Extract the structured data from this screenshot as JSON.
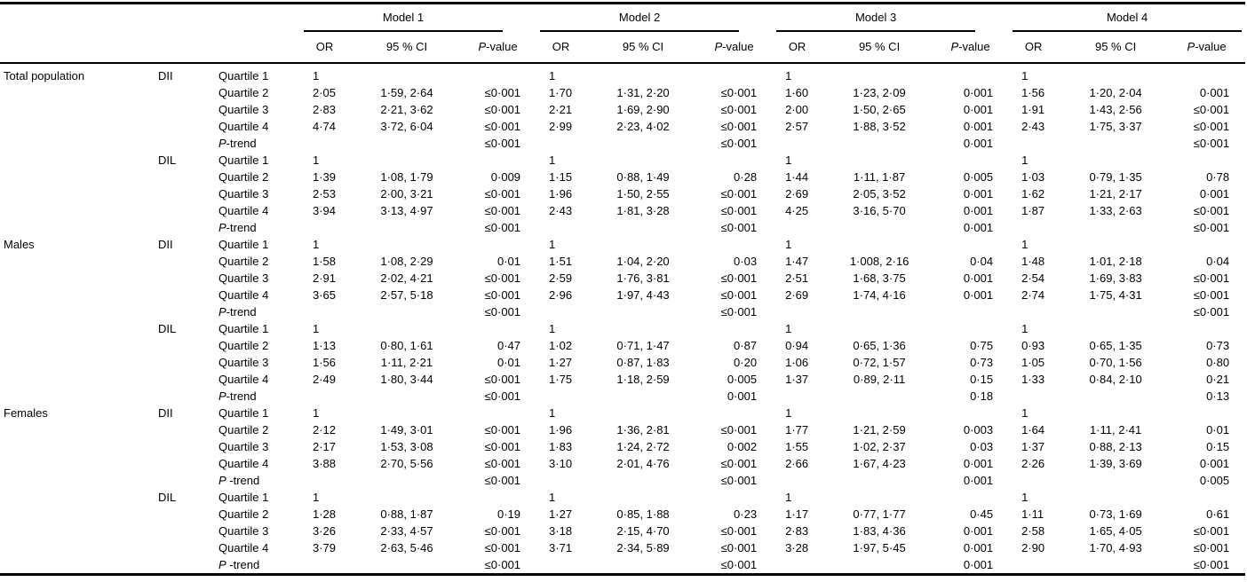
{
  "models": [
    "Model 1",
    "Model 2",
    "Model 3",
    "Model 4"
  ],
  "subheader": {
    "or": "OR",
    "ci": "95 % CI",
    "p_italic": "P",
    "p_rest": "-value"
  },
  "groups": [
    {
      "label": "Total population",
      "exposures": [
        {
          "label": "DII",
          "rows": [
            {
              "prefix": "",
              "label": "Quartile 1",
              "cells": [
                [
                  "1",
                  "",
                  ""
                ],
                [
                  "1",
                  "",
                  ""
                ],
                [
                  "1",
                  "",
                  ""
                ],
                [
                  "1",
                  "",
                  ""
                ]
              ]
            },
            {
              "prefix": "",
              "label": "Quartile 2",
              "cells": [
                [
                  "2·05",
                  "1·59, 2·64",
                  "≤0·001"
                ],
                [
                  "1·70",
                  "1·31, 2·20",
                  "≤0·001"
                ],
                [
                  "1·60",
                  "1·23, 2·09",
                  "0·001"
                ],
                [
                  "1·56",
                  "1·20, 2·04",
                  "0·001"
                ]
              ]
            },
            {
              "prefix": "",
              "label": "Quartile 3",
              "cells": [
                [
                  "2·83",
                  "2·21, 3·62",
                  "≤0·001"
                ],
                [
                  "2·21",
                  "1·69, 2·90",
                  "≤0·001"
                ],
                [
                  "2·00",
                  "1·50, 2·65",
                  "0·001"
                ],
                [
                  "1·91",
                  "1·43, 2·56",
                  "≤0·001"
                ]
              ]
            },
            {
              "prefix": "",
              "label": "Quartile 4",
              "cells": [
                [
                  "4·74",
                  "3·72, 6·04",
                  "≤0·001"
                ],
                [
                  "2·99",
                  "2·23, 4·02",
                  "≤0·001"
                ],
                [
                  "2·57",
                  "1·88, 3·52",
                  "0·001"
                ],
                [
                  "2·43",
                  "1·75, 3·37",
                  "≤0·001"
                ]
              ]
            },
            {
              "prefix": "P",
              "label": "-trend",
              "cells": [
                [
                  "",
                  "",
                  "≤0·001"
                ],
                [
                  "",
                  "",
                  "≤0·001"
                ],
                [
                  "",
                  "",
                  "0·001"
                ],
                [
                  "",
                  "",
                  "≤0·001"
                ]
              ]
            }
          ]
        },
        {
          "label": "DIL",
          "rows": [
            {
              "prefix": "",
              "label": "Quartile 1",
              "cells": [
                [
                  "1",
                  "",
                  ""
                ],
                [
                  "1",
                  "",
                  ""
                ],
                [
                  "1",
                  "",
                  ""
                ],
                [
                  "1",
                  "",
                  ""
                ]
              ]
            },
            {
              "prefix": "",
              "label": "Quartile 2",
              "cells": [
                [
                  "1·39",
                  "1·08, 1·79",
                  "0·009"
                ],
                [
                  "1·15",
                  "0·88, 1·49",
                  "0·28"
                ],
                [
                  "1·44",
                  "1·11, 1·87",
                  "0·005"
                ],
                [
                  "1·03",
                  "0·79, 1·35",
                  "0·78"
                ]
              ]
            },
            {
              "prefix": "",
              "label": "Quartile 3",
              "cells": [
                [
                  "2·53",
                  "2·00, 3·21",
                  "≤0·001"
                ],
                [
                  "1·96",
                  "1·50, 2·55",
                  "≤0·001"
                ],
                [
                  "2·69",
                  "2·05, 3·52",
                  "0·001"
                ],
                [
                  "1·62",
                  "1·21, 2·17",
                  "0·001"
                ]
              ]
            },
            {
              "prefix": "",
              "label": "Quartile 4",
              "cells": [
                [
                  "3·94",
                  "3·13, 4·97",
                  "≤0·001"
                ],
                [
                  "2·43",
                  "1·81, 3·28",
                  "≤0·001"
                ],
                [
                  "4·25",
                  "3·16, 5·70",
                  "0·001"
                ],
                [
                  "1·87",
                  "1·33, 2·63",
                  "≤0·001"
                ]
              ]
            },
            {
              "prefix": "P",
              "label": "-trend",
              "cells": [
                [
                  "",
                  "",
                  "≤0·001"
                ],
                [
                  "",
                  "",
                  "≤0·001"
                ],
                [
                  "",
                  "",
                  "0·001"
                ],
                [
                  "",
                  "",
                  "≤0·001"
                ]
              ]
            }
          ]
        }
      ]
    },
    {
      "label": "Males",
      "exposures": [
        {
          "label": "DII",
          "rows": [
            {
              "prefix": "",
              "label": "Quartile 1",
              "cells": [
                [
                  "1",
                  "",
                  ""
                ],
                [
                  "1",
                  "",
                  ""
                ],
                [
                  "1",
                  "",
                  ""
                ],
                [
                  "1",
                  "",
                  ""
                ]
              ]
            },
            {
              "prefix": "",
              "label": "Quartile 2",
              "cells": [
                [
                  "1·58",
                  "1·08, 2·29",
                  "0·01"
                ],
                [
                  "1·51",
                  "1·04, 2·20",
                  "0·03"
                ],
                [
                  "1·47",
                  "1·008, 2·16",
                  "0·04"
                ],
                [
                  "1·48",
                  "1·01, 2·18",
                  "0·04"
                ]
              ]
            },
            {
              "prefix": "",
              "label": "Quartile 3",
              "cells": [
                [
                  "2·91",
                  "2·02, 4·21",
                  "≤0·001"
                ],
                [
                  "2·59",
                  "1·76, 3·81",
                  "≤0·001"
                ],
                [
                  "2·51",
                  "1·68, 3·75",
                  "0·001"
                ],
                [
                  "2·54",
                  "1·69, 3·83",
                  "≤0·001"
                ]
              ]
            },
            {
              "prefix": "",
              "label": "Quartile 4",
              "cells": [
                [
                  "3·65",
                  "2·57, 5·18",
                  "≤0·001"
                ],
                [
                  "2·96",
                  "1·97, 4·43",
                  "≤0·001"
                ],
                [
                  "2·69",
                  "1·74, 4·16",
                  "0·001"
                ],
                [
                  "2·74",
                  "1·75, 4·31",
                  "≤0·001"
                ]
              ]
            },
            {
              "prefix": "P",
              "label": "-trend",
              "cells": [
                [
                  "",
                  "",
                  "≤0·001"
                ],
                [
                  "",
                  "",
                  "≤0·001"
                ],
                [
                  "",
                  "",
                  ""
                ],
                [
                  "",
                  "",
                  "≤0·001"
                ]
              ]
            }
          ]
        },
        {
          "label": "DIL",
          "rows": [
            {
              "prefix": "",
              "label": "Quartile 1",
              "cells": [
                [
                  "1",
                  "",
                  ""
                ],
                [
                  "1",
                  "",
                  ""
                ],
                [
                  "1",
                  "",
                  ""
                ],
                [
                  "1",
                  "",
                  ""
                ]
              ]
            },
            {
              "prefix": "",
              "label": "Quartile 2",
              "cells": [
                [
                  "1·13",
                  "0·80, 1·61",
                  "0·47"
                ],
                [
                  "1·02",
                  "0·71, 1·47",
                  "0·87"
                ],
                [
                  "0·94",
                  "0·65, 1·36",
                  "0·75"
                ],
                [
                  "0·93",
                  "0·65, 1·35",
                  "0·73"
                ]
              ]
            },
            {
              "prefix": "",
              "label": "Quartile 3",
              "cells": [
                [
                  "1·56",
                  "1·11, 2·21",
                  "0·01"
                ],
                [
                  "1·27",
                  "0·87, 1·83",
                  "0·20"
                ],
                [
                  "1·06",
                  "0·72, 1·57",
                  "0·73"
                ],
                [
                  "1·05",
                  "0·70, 1·56",
                  "0·80"
                ]
              ]
            },
            {
              "prefix": "",
              "label": "Quartile 4",
              "cells": [
                [
                  "2·49",
                  "1·80, 3·44",
                  "≤0·001"
                ],
                [
                  "1·75",
                  "1·18, 2·59",
                  "0·005"
                ],
                [
                  "1·37",
                  "0·89, 2·11",
                  "0·15"
                ],
                [
                  "1·33",
                  "0·84, 2·10",
                  "0·21"
                ]
              ]
            },
            {
              "prefix": "P",
              "label": "-trend",
              "cells": [
                [
                  "",
                  "",
                  "≤0·001"
                ],
                [
                  "",
                  "",
                  "0·001"
                ],
                [
                  "",
                  "",
                  "0·18"
                ],
                [
                  "",
                  "",
                  "0·13"
                ]
              ]
            }
          ]
        }
      ]
    },
    {
      "label": "Females",
      "exposures": [
        {
          "label": "DII",
          "rows": [
            {
              "prefix": "",
              "label": "Quartile 1",
              "cells": [
                [
                  "1",
                  "",
                  ""
                ],
                [
                  "1",
                  "",
                  ""
                ],
                [
                  "1",
                  "",
                  ""
                ],
                [
                  "1",
                  "",
                  ""
                ]
              ]
            },
            {
              "prefix": "",
              "label": "Quartile 2",
              "cells": [
                [
                  "2·12",
                  "1·49, 3·01",
                  "≤0·001"
                ],
                [
                  "1·96",
                  "1·36, 2·81",
                  "≤0·001"
                ],
                [
                  "1·77",
                  "1·21, 2·59",
                  "0·003"
                ],
                [
                  "1·64",
                  "1·11, 2·41",
                  "0·01"
                ]
              ]
            },
            {
              "prefix": "",
              "label": "Quartile 3",
              "cells": [
                [
                  "2·17",
                  "1·53, 3·08",
                  "≤0·001"
                ],
                [
                  "1·83",
                  "1·24, 2·72",
                  "0·002"
                ],
                [
                  "1·55",
                  "1·02, 2·37",
                  "0·03"
                ],
                [
                  "1·37",
                  "0·88, 2·13",
                  "0·15"
                ]
              ]
            },
            {
              "prefix": "",
              "label": "Quartile 4",
              "cells": [
                [
                  "3·88",
                  "2·70, 5·56",
                  "≤0·001"
                ],
                [
                  "3·10",
                  "2·01, 4·76",
                  "≤0·001"
                ],
                [
                  "2·66",
                  "1·67, 4·23",
                  "0·001"
                ],
                [
                  "2·26",
                  "1·39, 3·69",
                  "0·001"
                ]
              ]
            },
            {
              "prefix": "P",
              "label": " -trend",
              "cells": [
                [
                  "",
                  "",
                  "≤0·001"
                ],
                [
                  "",
                  "",
                  "≤0·001"
                ],
                [
                  "",
                  "",
                  "0·001"
                ],
                [
                  "",
                  "",
                  "0·005"
                ]
              ]
            }
          ]
        },
        {
          "label": "DIL",
          "rows": [
            {
              "prefix": "",
              "label": "Quartile 1",
              "cells": [
                [
                  "1",
                  "",
                  ""
                ],
                [
                  "1",
                  "",
                  ""
                ],
                [
                  "1",
                  "",
                  ""
                ],
                [
                  "1",
                  "",
                  ""
                ]
              ]
            },
            {
              "prefix": "",
              "label": "Quartile 2",
              "cells": [
                [
                  "1·28",
                  "0·88, 1·87",
                  "0·19"
                ],
                [
                  "1·27",
                  "0·85, 1·88",
                  "0·23"
                ],
                [
                  "1·17",
                  "0·77, 1·77",
                  "0·45"
                ],
                [
                  "1·11",
                  "0·73, 1·69",
                  "0·61"
                ]
              ]
            },
            {
              "prefix": "",
              "label": "Quartile 3",
              "cells": [
                [
                  "3·26",
                  "2·33, 4·57",
                  "≤0·001"
                ],
                [
                  "3·18",
                  "2·15, 4·70",
                  "≤0·001"
                ],
                [
                  "2·83",
                  "1·83, 4·36",
                  "0·001"
                ],
                [
                  "2·58",
                  "1·65, 4·05",
                  "≤0·001"
                ]
              ]
            },
            {
              "prefix": "",
              "label": "Quartile 4",
              "cells": [
                [
                  "3·79",
                  "2·63, 5·46",
                  "≤0·001"
                ],
                [
                  "3·71",
                  "2·34, 5·89",
                  "≤0·001"
                ],
                [
                  "3·28",
                  "1·97, 5·45",
                  "0·001"
                ],
                [
                  "2·90",
                  "1·70, 4·93",
                  "≤0·001"
                ]
              ]
            },
            {
              "prefix": "P",
              "label": " -trend",
              "cells": [
                [
                  "",
                  "",
                  "≤0·001"
                ],
                [
                  "",
                  "",
                  "≤0·001"
                ],
                [
                  "",
                  "",
                  "0·001"
                ],
                [
                  "",
                  "",
                  "≤0·001"
                ]
              ]
            }
          ]
        }
      ]
    }
  ]
}
